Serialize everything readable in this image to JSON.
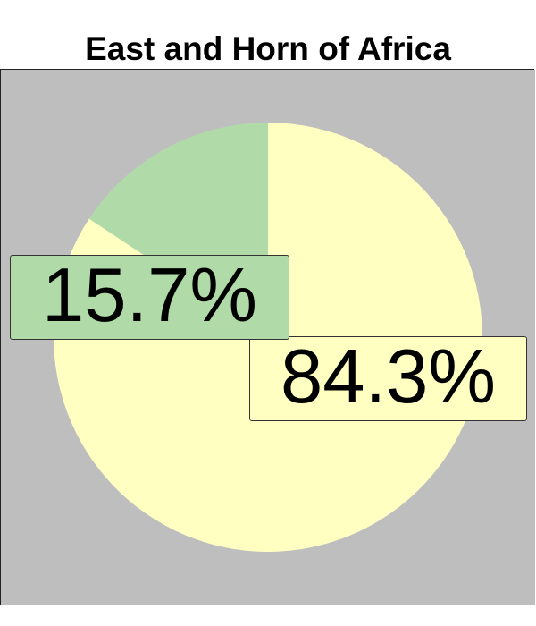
{
  "colors": {
    "panel_background": "#bebebe",
    "slice_large": "#ffffc2",
    "slice_small": "#b0dba8"
  },
  "chart_data": {
    "type": "pie",
    "title": "East and Horn of Africa",
    "slices": [
      {
        "label": "84.3%",
        "value": 84.3,
        "color": "#ffffc2"
      },
      {
        "label": "15.7%",
        "value": 15.7,
        "color": "#b0dba8"
      }
    ],
    "start_angle_deg": 0,
    "direction": "clockwise",
    "legend": "none"
  }
}
